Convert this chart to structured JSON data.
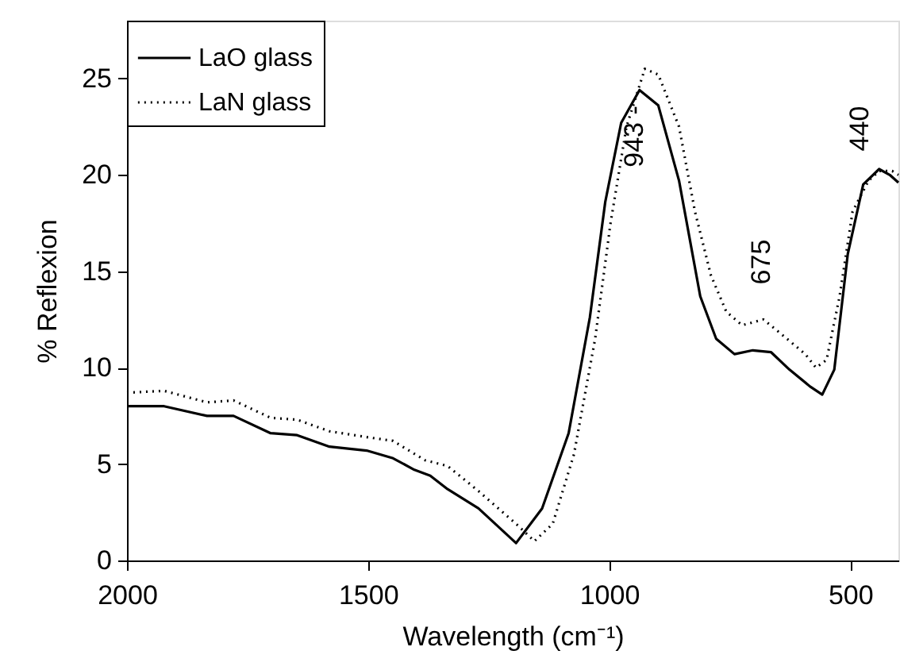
{
  "chart_data": {
    "type": "line",
    "xlabel": "Wavelength (cm⁻¹)",
    "ylabel": "% Reflexion",
    "xlim": [
      2000,
      400
    ],
    "xticks": [
      2000,
      1500,
      1000,
      500
    ],
    "ylim": [
      0,
      28
    ],
    "yticks": [
      0,
      5,
      10,
      15,
      20,
      25
    ],
    "grid": false,
    "legend": "top left",
    "marker": "none",
    "series": [
      {
        "name": "LaO glass",
        "color": "#000000",
        "line_style": "solid",
        "x": [
          2000,
          1923,
          1834,
          1779,
          1702,
          1647,
          1580,
          1503,
          1448,
          1404,
          1371,
          1335,
          1271,
          1193,
          1139,
          1084,
          1040,
          1008,
          975,
          937,
          898,
          855,
          811,
          778,
          740,
          702,
          664,
          626,
          582,
          558,
          533,
          505,
          473,
          440,
          418,
          400
        ],
        "values": [
          8.0,
          8.0,
          7.5,
          7.5,
          6.6,
          6.5,
          5.9,
          5.7,
          5.3,
          4.7,
          4.4,
          3.7,
          2.7,
          0.9,
          2.7,
          6.6,
          12.6,
          18.6,
          22.7,
          24.4,
          23.6,
          19.7,
          13.7,
          11.5,
          10.7,
          10.9,
          10.8,
          9.9,
          9.0,
          8.6,
          9.9,
          15.9,
          19.5,
          20.3,
          20.0,
          19.6
        ]
      },
      {
        "name": "LaN glass",
        "color": "#000000",
        "line_style": "dotted",
        "x": [
          2000,
          1923,
          1834,
          1779,
          1702,
          1647,
          1580,
          1503,
          1448,
          1382,
          1335,
          1271,
          1193,
          1155,
          1117,
          1073,
          1029,
          997,
          964,
          926,
          898,
          855,
          822,
          789,
          757,
          724,
          680,
          636,
          593,
          571,
          549,
          522,
          495,
          462,
          440,
          413,
          400
        ],
        "values": [
          8.7,
          8.8,
          8.2,
          8.3,
          7.4,
          7.3,
          6.7,
          6.4,
          6.2,
          5.2,
          4.9,
          3.6,
          1.9,
          1.0,
          1.9,
          5.5,
          11.5,
          17.5,
          22.5,
          25.5,
          25.2,
          22.5,
          18.1,
          14.8,
          12.9,
          12.2,
          12.5,
          11.6,
          10.7,
          10.0,
          10.4,
          13.7,
          18.1,
          19.7,
          20.2,
          20.2,
          20.0
        ]
      }
    ],
    "annotations": [
      "943 -",
      "675",
      "440"
    ]
  }
}
